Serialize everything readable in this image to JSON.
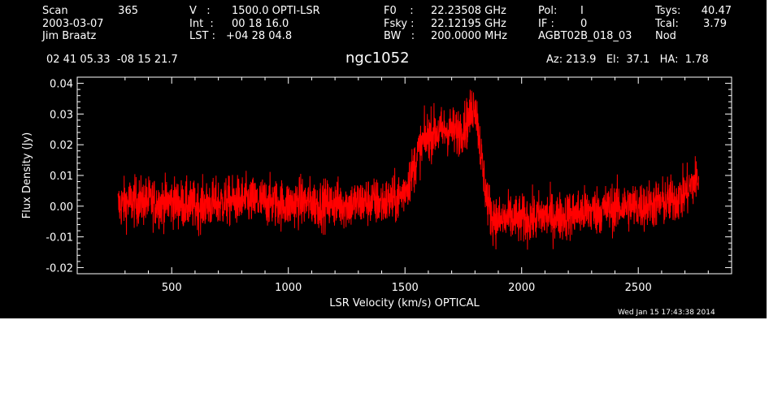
{
  "header": {
    "col1": {
      "scan_label": "Scan",
      "scan_value": "365",
      "date": "2003-03-07",
      "observer": "Jim Braatz"
    },
    "col2": {
      "v_label": "V   :",
      "v_value": "1500.0 OPTI-LSR",
      "int_label": "Int  :",
      "int_value": "00 18 16.0",
      "lst_label": "LST :",
      "lst_value": "+04 28 04.8"
    },
    "col3": {
      "f0_label": "F0    :",
      "f0_value": "22.23508 GHz",
      "fsky_label": "Fsky :",
      "fsky_value": "22.12195 GHz",
      "bw_label": "BW   :",
      "bw_value": "200.0000 MHz"
    },
    "col4": {
      "pol_label": "Pol:",
      "pol_value": "I",
      "if_label": "IF :",
      "if_value": "0",
      "project": "AGBT02B_018_03"
    },
    "col5": {
      "tsys_label": "Tsys:",
      "tsys_value": "40.47",
      "tcal_label": "Tcal:",
      "tcal_value": "3.79",
      "mode": "Nod"
    },
    "coords": "02 41 05.33  -08 15 21.7",
    "source": "ngc1052",
    "pointing": "Az: 213.9   El:  37.1   HA:  1.78"
  },
  "footer": {
    "timestamp": "Wed Jan 15 17:43:38 2014"
  },
  "colors": {
    "background": "#000000",
    "axes": "#ffffff",
    "spectrum": "#ff0000"
  },
  "chart_data": {
    "type": "line",
    "title": "ngc1052",
    "xlabel": "LSR Velocity (km/s) OPTICAL",
    "ylabel": "Flux Density (Jy)",
    "xlim": [
      95,
      2900
    ],
    "ylim": [
      -0.022,
      0.042
    ],
    "xticks": [
      500,
      1000,
      1500,
      2000,
      2500
    ],
    "yticks": [
      -0.02,
      -0.01,
      0.0,
      0.01,
      0.02,
      0.03,
      0.04
    ],
    "ytick_labels": [
      "-0.02",
      "-0.01",
      "0.00",
      "0.01",
      "0.02",
      "0.03",
      "0.04"
    ],
    "grid": false,
    "series": [
      {
        "x": [
          270,
          300,
          350,
          400,
          450,
          500,
          550,
          600,
          650,
          700,
          750,
          800,
          850,
          900,
          950,
          1000,
          1050,
          1100,
          1150,
          1200,
          1250,
          1300,
          1350,
          1400,
          1450,
          1480,
          1510,
          1540,
          1560,
          1580,
          1600,
          1620,
          1650,
          1680,
          1700,
          1720,
          1750,
          1770,
          1790,
          1800,
          1810,
          1830,
          1850,
          1870,
          1900,
          1950,
          2000,
          2050,
          2100,
          2150,
          2200,
          2250,
          2300,
          2350,
          2400,
          2450,
          2500,
          2550,
          2600,
          2650,
          2700,
          2720,
          2740,
          2760
        ],
        "values": [
          0.0,
          0.001,
          0.0015,
          0.0015,
          0.001,
          0.0015,
          0.0005,
          0.0,
          0.0005,
          0.001,
          0.0015,
          0.002,
          0.0015,
          0.0015,
          0.001,
          0.0005,
          0.0015,
          0.001,
          0.0005,
          0.001,
          0.0005,
          0.001,
          0.0015,
          0.001,
          0.002,
          0.003,
          0.007,
          0.013,
          0.018,
          0.021,
          0.023,
          0.024,
          0.024,
          0.025,
          0.0245,
          0.024,
          0.026,
          0.0275,
          0.032,
          0.034,
          0.028,
          0.014,
          0.003,
          -0.003,
          -0.005,
          -0.004,
          -0.0045,
          -0.004,
          -0.003,
          -0.0035,
          -0.003,
          -0.002,
          -0.0015,
          -0.001,
          -0.0005,
          0.0,
          0.0,
          0.0005,
          0.001,
          0.002,
          0.004,
          0.006,
          0.008,
          0.009
        ],
        "noise_rms": 0.004
      }
    ]
  }
}
